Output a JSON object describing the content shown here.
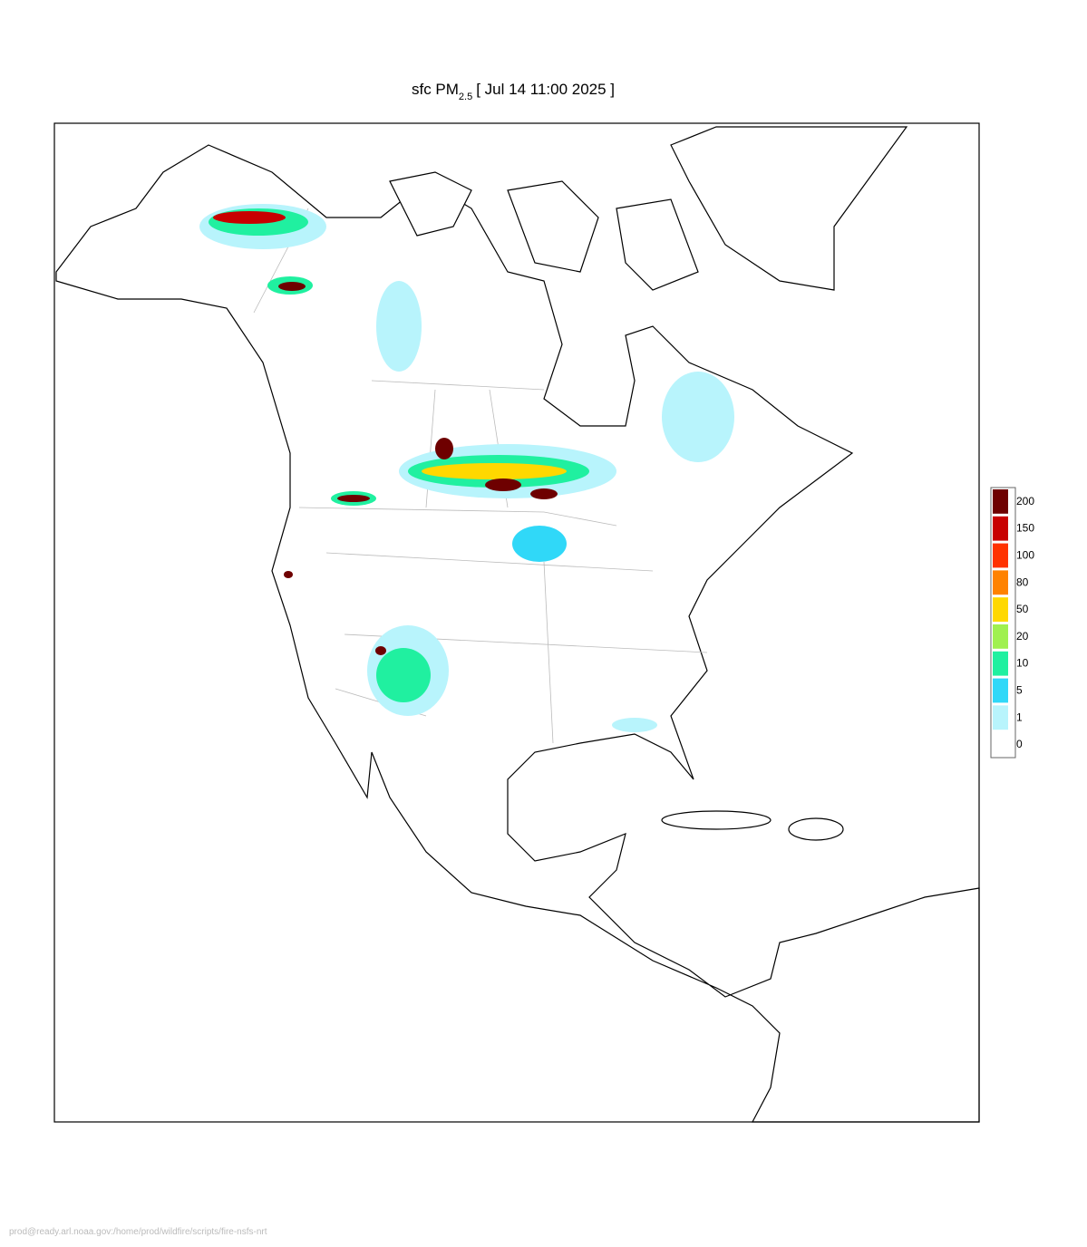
{
  "title": {
    "prefix": "sfc PM",
    "subscript": "2.5",
    "suffix": "[ Jul 14 11:00 2025 ]"
  },
  "legend": {
    "levels": [
      {
        "value": 200,
        "color": "#6e0000"
      },
      {
        "value": 150,
        "color": "#c80000"
      },
      {
        "value": 100,
        "color": "#ff3200"
      },
      {
        "value": 80,
        "color": "#ff8200"
      },
      {
        "value": 50,
        "color": "#ffd800"
      },
      {
        "value": 20,
        "color": "#a0f050"
      },
      {
        "value": 10,
        "color": "#20f0a0"
      },
      {
        "value": 5,
        "color": "#30d8f8"
      },
      {
        "value": 1,
        "color": "#b8f4fc"
      },
      {
        "value": 0,
        "color": "#ffffff"
      }
    ]
  },
  "footer": "prod@ready.arl.noaa.gov:/home/prod/wildfire/scripts/fire-nsfs-nrt"
}
